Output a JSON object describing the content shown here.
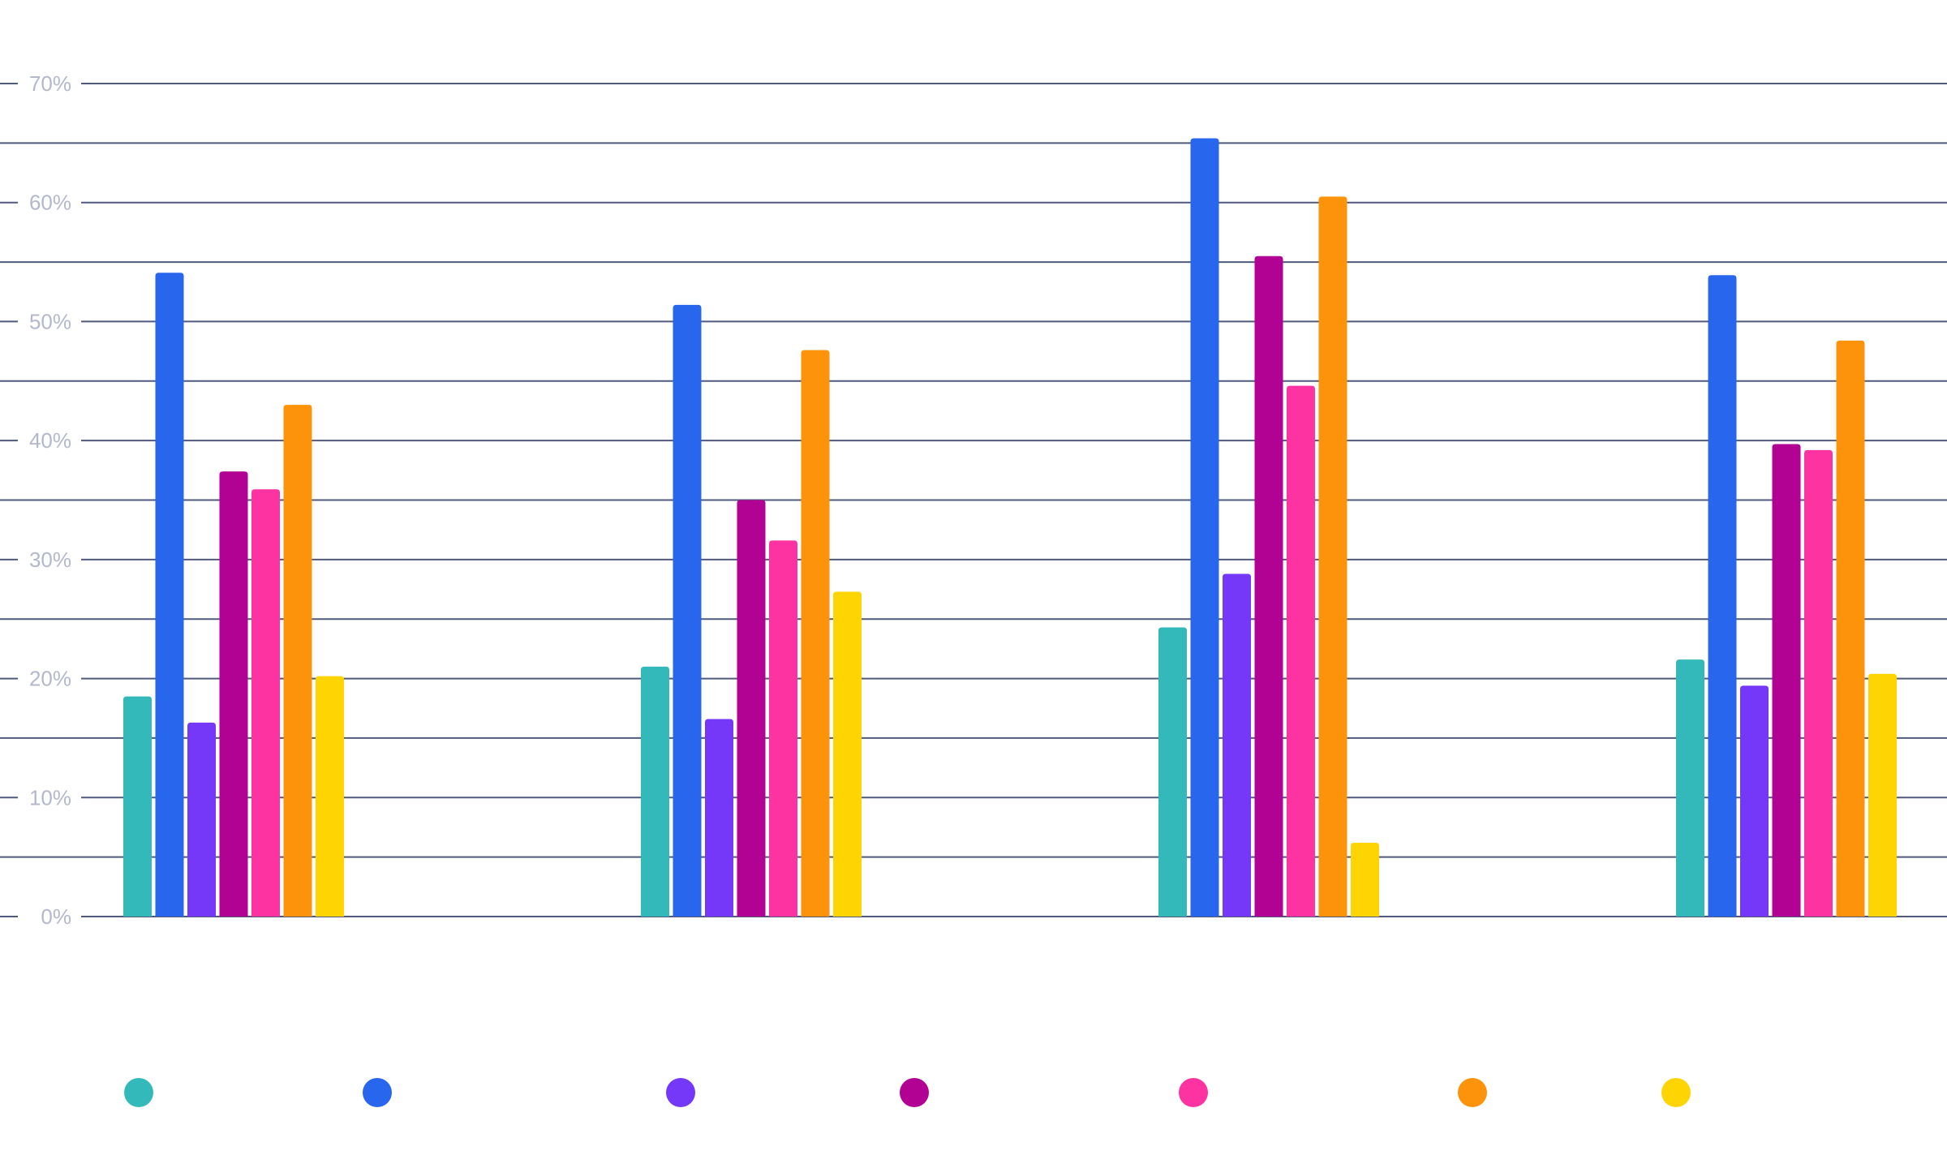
{
  "chart_data": {
    "type": "bar",
    "title": "",
    "xlabel": "",
    "ylabel": "",
    "categories": [
      "",
      "",
      "",
      ""
    ],
    "ylim": [
      0,
      70
    ],
    "yticks": [
      "0%",
      "10%",
      "20%",
      "30%",
      "40%",
      "50%",
      "60%",
      "70%"
    ],
    "grid": true,
    "grid_step": 5,
    "legend_position": "bottom",
    "series": [
      {
        "name": "",
        "color": "#33B9B9",
        "values": [
          18.5,
          21.0,
          24.3,
          21.6
        ]
      },
      {
        "name": "",
        "color": "#2966EE",
        "values": [
          54.1,
          51.4,
          65.4,
          53.9
        ]
      },
      {
        "name": "",
        "color": "#7538F9",
        "values": [
          16.3,
          16.6,
          28.8,
          19.4
        ]
      },
      {
        "name": "",
        "color": "#B10293",
        "values": [
          37.4,
          35.0,
          55.5,
          39.7
        ]
      },
      {
        "name": "",
        "color": "#FC33A0",
        "values": [
          35.9,
          31.6,
          44.6,
          39.2
        ]
      },
      {
        "name": "",
        "color": "#FD930A",
        "values": [
          43.0,
          47.6,
          60.5,
          48.4
        ]
      },
      {
        "name": "",
        "color": "#FED502",
        "values": [
          20.2,
          27.3,
          6.2,
          20.4
        ]
      }
    ]
  },
  "colors": {
    "gridline": "#4f5a7d",
    "tick_label": "#b3b8cc",
    "background": "#ffffff"
  }
}
